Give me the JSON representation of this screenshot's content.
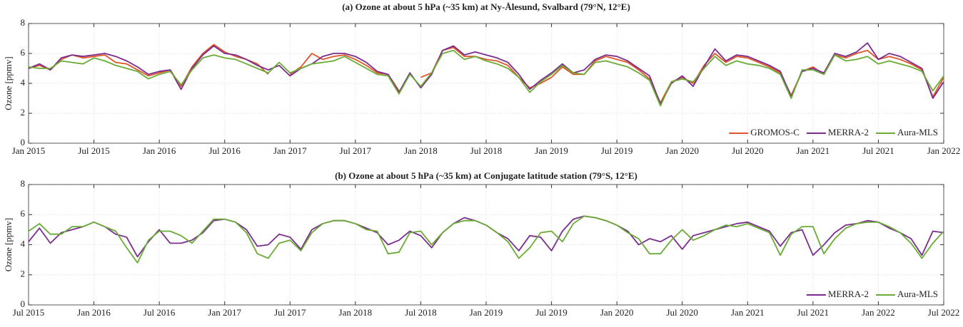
{
  "chart_data": [
    {
      "type": "line",
      "title": "(a) Ozone at about 5 hPa (~35 km) at Ny-Ålesund, Svalbard (79°N, 12°E)",
      "y_label": "Ozone [ppmv]",
      "x": [
        "2015-01",
        "2015-02",
        "2015-03",
        "2015-04",
        "2015-05",
        "2015-06",
        "2015-07",
        "2015-08",
        "2015-09",
        "2015-10",
        "2015-11",
        "2015-12",
        "2016-01",
        "2016-02",
        "2016-03",
        "2016-04",
        "2016-05",
        "2016-06",
        "2016-07",
        "2016-08",
        "2016-09",
        "2016-10",
        "2016-11",
        "2016-12",
        "2017-01",
        "2017-02",
        "2017-03",
        "2017-04",
        "2017-05",
        "2017-06",
        "2017-07",
        "2017-08",
        "2017-09",
        "2017-10",
        "2017-11",
        "2017-12",
        "2018-01",
        "2018-02",
        "2018-03",
        "2018-04",
        "2018-05",
        "2018-06",
        "2018-07",
        "2018-08",
        "2018-09",
        "2018-10",
        "2018-11",
        "2018-12",
        "2019-01",
        "2019-02",
        "2019-03",
        "2019-04",
        "2019-05",
        "2019-06",
        "2019-07",
        "2019-08",
        "2019-09",
        "2019-10",
        "2019-11",
        "2019-12",
        "2020-01",
        "2020-02",
        "2020-03",
        "2020-04",
        "2020-05",
        "2020-06",
        "2020-07",
        "2020-08",
        "2020-09",
        "2020-10",
        "2020-11",
        "2020-12",
        "2021-01",
        "2021-02",
        "2021-03",
        "2021-04",
        "2021-05",
        "2021-06",
        "2021-07",
        "2021-08",
        "2021-09",
        "2021-10",
        "2021-11",
        "2021-12",
        "2022-01"
      ],
      "series": [
        {
          "name": "GROMOS-C",
          "color": "#e0562a",
          "values": [
            5.0,
            5.2,
            4.9,
            5.6,
            5.9,
            5.7,
            5.8,
            5.9,
            5.4,
            5.3,
            4.9,
            4.5,
            4.7,
            4.9,
            3.8,
            5.1,
            6.0,
            6.6,
            6.1,
            5.8,
            5.6,
            5.3,
            4.6,
            null,
            4.6,
            5.1,
            6.0,
            5.6,
            5.8,
            5.9,
            5.6,
            5.2,
            4.7,
            4.6,
            3.5,
            null,
            4.4,
            4.7,
            6.2,
            6.4,
            5.8,
            5.8,
            5.6,
            5.5,
            5.2,
            4.4,
            3.7,
            4.0,
            4.4,
            5.1,
            4.6,
            4.6,
            5.5,
            5.8,
            5.6,
            5.4,
            4.9,
            4.3,
            2.7,
            4.1,
            4.4,
            4.0,
            5.2,
            6.0,
            5.4,
            5.8,
            5.7,
            5.4,
            5.1,
            4.7,
            3.2,
            4.8,
            5.1,
            4.6,
            5.9,
            5.7,
            6.0,
            6.2,
            5.6,
            5.8,
            5.6,
            5.3,
            4.9,
            3.1,
            4.4
          ]
        },
        {
          "name": "MERRA-2",
          "color": "#7b2d8e",
          "values": [
            5.0,
            5.3,
            4.9,
            5.7,
            5.9,
            5.8,
            5.9,
            6.0,
            5.8,
            5.5,
            5.1,
            4.6,
            4.8,
            4.9,
            3.6,
            5.0,
            5.9,
            6.5,
            6.0,
            5.9,
            5.6,
            5.2,
            4.9,
            5.2,
            4.5,
            5.0,
            5.3,
            5.8,
            6.0,
            6.0,
            5.8,
            5.4,
            4.8,
            4.6,
            3.4,
            4.7,
            3.7,
            4.6,
            6.2,
            6.5,
            5.9,
            6.1,
            5.9,
            5.7,
            5.4,
            4.6,
            3.6,
            4.2,
            4.7,
            5.3,
            4.7,
            4.9,
            5.6,
            5.9,
            5.8,
            5.5,
            5.0,
            4.5,
            2.6,
            4.0,
            4.5,
            3.8,
            5.1,
            6.3,
            5.5,
            5.9,
            5.8,
            5.5,
            5.2,
            4.8,
            3.1,
            4.8,
            5.0,
            4.7,
            6.0,
            5.8,
            6.1,
            6.7,
            5.6,
            6.0,
            5.8,
            5.4,
            5.0,
            3.0,
            4.1
          ]
        },
        {
          "name": "Aura-MLS",
          "color": "#6aab35",
          "values": [
            5.1,
            5.0,
            5.0,
            5.5,
            5.4,
            5.3,
            5.7,
            5.5,
            5.2,
            5.0,
            4.8,
            4.3,
            4.6,
            4.8,
            3.9,
            4.9,
            5.7,
            5.9,
            5.7,
            5.6,
            5.3,
            5.0,
            4.7,
            5.4,
            4.7,
            5.0,
            5.3,
            5.4,
            5.5,
            5.8,
            5.4,
            5.0,
            4.6,
            4.5,
            3.3,
            4.6,
            3.8,
            4.7,
            6.0,
            6.2,
            5.6,
            5.8,
            5.5,
            5.3,
            5.0,
            4.4,
            3.4,
            4.1,
            4.6,
            5.2,
            4.7,
            4.6,
            5.4,
            5.5,
            5.3,
            5.1,
            4.7,
            4.2,
            2.5,
            4.1,
            4.3,
            4.1,
            5.0,
            5.8,
            5.2,
            5.5,
            5.3,
            5.2,
            5.0,
            4.6,
            3.0,
            4.9,
            4.9,
            4.6,
            5.9,
            5.5,
            5.6,
            5.8,
            5.3,
            5.5,
            5.3,
            5.1,
            4.8,
            3.5,
            4.5
          ]
        }
      ],
      "xlim": [
        "2015-01",
        "2022-01"
      ],
      "xticks": [
        {
          "value": "2015-01",
          "label": "Jan 2015"
        },
        {
          "value": "2015-07",
          "label": "Jul 2015"
        },
        {
          "value": "2016-01",
          "label": "Jan 2016"
        },
        {
          "value": "2016-07",
          "label": "Jul 2016"
        },
        {
          "value": "2017-01",
          "label": "Jan 2017"
        },
        {
          "value": "2017-07",
          "label": "Jul 2017"
        },
        {
          "value": "2018-01",
          "label": "Jan 2018"
        },
        {
          "value": "2018-07",
          "label": "Jul 2018"
        },
        {
          "value": "2019-01",
          "label": "Jan 2019"
        },
        {
          "value": "2019-07",
          "label": "Jul 2019"
        },
        {
          "value": "2020-01",
          "label": "Jan 2020"
        },
        {
          "value": "2020-07",
          "label": "Jul 2020"
        },
        {
          "value": "2021-01",
          "label": "Jan 2021"
        },
        {
          "value": "2021-07",
          "label": "Jul 2021"
        },
        {
          "value": "2022-01",
          "label": "Jan 2022"
        }
      ],
      "ylim": [
        0,
        8
      ],
      "yticks": [
        0,
        2,
        4,
        6,
        8
      ],
      "grid": true,
      "legend": "lower right"
    },
    {
      "type": "line",
      "title": "(b) Ozone at about 5 hPa (~35 km) at Conjugate latitude station (79°S, 12°E)",
      "y_label": "Ozone [ppmv]",
      "x": [
        "2015-07",
        "2015-08",
        "2015-09",
        "2015-10",
        "2015-11",
        "2015-12",
        "2016-01",
        "2016-02",
        "2016-03",
        "2016-04",
        "2016-05",
        "2016-06",
        "2016-07",
        "2016-08",
        "2016-09",
        "2016-10",
        "2016-11",
        "2016-12",
        "2017-01",
        "2017-02",
        "2017-03",
        "2017-04",
        "2017-05",
        "2017-06",
        "2017-07",
        "2017-08",
        "2017-09",
        "2017-10",
        "2017-11",
        "2017-12",
        "2018-01",
        "2018-02",
        "2018-03",
        "2018-04",
        "2018-05",
        "2018-06",
        "2018-07",
        "2018-08",
        "2018-09",
        "2018-10",
        "2018-11",
        "2018-12",
        "2019-01",
        "2019-02",
        "2019-03",
        "2019-04",
        "2019-05",
        "2019-06",
        "2019-07",
        "2019-08",
        "2019-09",
        "2019-10",
        "2019-11",
        "2019-12",
        "2020-01",
        "2020-02",
        "2020-03",
        "2020-04",
        "2020-05",
        "2020-06",
        "2020-07",
        "2020-08",
        "2020-09",
        "2020-10",
        "2020-11",
        "2020-12",
        "2021-01",
        "2021-02",
        "2021-03",
        "2021-04",
        "2021-05",
        "2021-06",
        "2021-07",
        "2021-08",
        "2021-09",
        "2021-10",
        "2021-11",
        "2021-12",
        "2022-01",
        "2022-02",
        "2022-03",
        "2022-04",
        "2022-05",
        "2022-06",
        "2022-07"
      ],
      "series": [
        {
          "name": "MERRA-2",
          "color": "#7b2d8e",
          "values": [
            4.2,
            5.1,
            4.1,
            4.8,
            5.0,
            5.2,
            5.5,
            5.2,
            4.7,
            4.5,
            3.2,
            4.2,
            5.0,
            4.1,
            4.1,
            4.3,
            4.8,
            5.6,
            5.7,
            5.5,
            5.0,
            3.9,
            4.0,
            4.7,
            4.5,
            3.7,
            5.0,
            5.4,
            5.6,
            5.6,
            5.4,
            5.1,
            4.8,
            4.0,
            4.3,
            4.9,
            4.6,
            3.8,
            4.8,
            5.4,
            5.8,
            5.6,
            5.3,
            4.8,
            4.4,
            3.6,
            4.6,
            4.5,
            3.6,
            4.9,
            5.7,
            5.9,
            5.8,
            5.6,
            5.3,
            4.9,
            4.0,
            4.4,
            4.2,
            4.6,
            3.7,
            4.6,
            4.8,
            5.0,
            5.2,
            5.4,
            5.5,
            5.2,
            4.9,
            3.9,
            4.8,
            5.0,
            3.3,
            4.0,
            4.8,
            5.3,
            5.4,
            5.6,
            5.5,
            5.1,
            4.8,
            4.4,
            3.3,
            4.9,
            4.8
          ]
        },
        {
          "name": "Aura-MLS",
          "color": "#6aab35",
          "values": [
            4.9,
            5.4,
            4.7,
            4.7,
            5.2,
            5.2,
            5.5,
            5.2,
            4.9,
            3.8,
            2.8,
            4.3,
            4.9,
            4.9,
            4.6,
            4.1,
            4.9,
            5.7,
            5.7,
            5.5,
            4.8,
            3.4,
            3.1,
            4.1,
            4.3,
            3.6,
            4.8,
            5.4,
            5.6,
            5.6,
            5.4,
            5.0,
            4.9,
            3.4,
            3.5,
            4.8,
            4.9,
            4.0,
            4.8,
            5.4,
            5.6,
            5.6,
            5.3,
            4.8,
            4.2,
            3.1,
            3.8,
            4.8,
            4.9,
            4.2,
            5.4,
            5.9,
            5.8,
            5.6,
            5.3,
            4.8,
            4.4,
            3.4,
            3.4,
            4.3,
            5.0,
            4.3,
            4.6,
            5.0,
            5.3,
            5.2,
            5.4,
            5.1,
            4.8,
            3.3,
            4.7,
            5.2,
            5.2,
            3.4,
            4.4,
            5.1,
            5.4,
            5.5,
            5.5,
            5.2,
            4.8,
            4.1,
            3.1,
            4.1,
            4.9
          ]
        }
      ],
      "xlim": [
        "2015-07",
        "2022-07"
      ],
      "xticks": [
        {
          "value": "2015-07",
          "label": "Jul 2015"
        },
        {
          "value": "2016-01",
          "label": "Jan 2016"
        },
        {
          "value": "2016-07",
          "label": "Jul 2016"
        },
        {
          "value": "2017-01",
          "label": "Jan 2017"
        },
        {
          "value": "2017-07",
          "label": "Jul 2017"
        },
        {
          "value": "2018-01",
          "label": "Jan 2018"
        },
        {
          "value": "2018-07",
          "label": "Jul 2018"
        },
        {
          "value": "2019-01",
          "label": "Jan 2019"
        },
        {
          "value": "2019-07",
          "label": "Jul 2019"
        },
        {
          "value": "2020-01",
          "label": "Jan 2020"
        },
        {
          "value": "2020-07",
          "label": "Jul 2020"
        },
        {
          "value": "2021-01",
          "label": "Jan 2021"
        },
        {
          "value": "2021-07",
          "label": "Jul 2021"
        },
        {
          "value": "2022-01",
          "label": "Jan 2022"
        },
        {
          "value": "2022-07",
          "label": "Jul 2022"
        }
      ],
      "ylim": [
        0,
        8
      ],
      "yticks": [
        0,
        2,
        4,
        6,
        8
      ],
      "grid": true,
      "legend": "lower right"
    }
  ]
}
